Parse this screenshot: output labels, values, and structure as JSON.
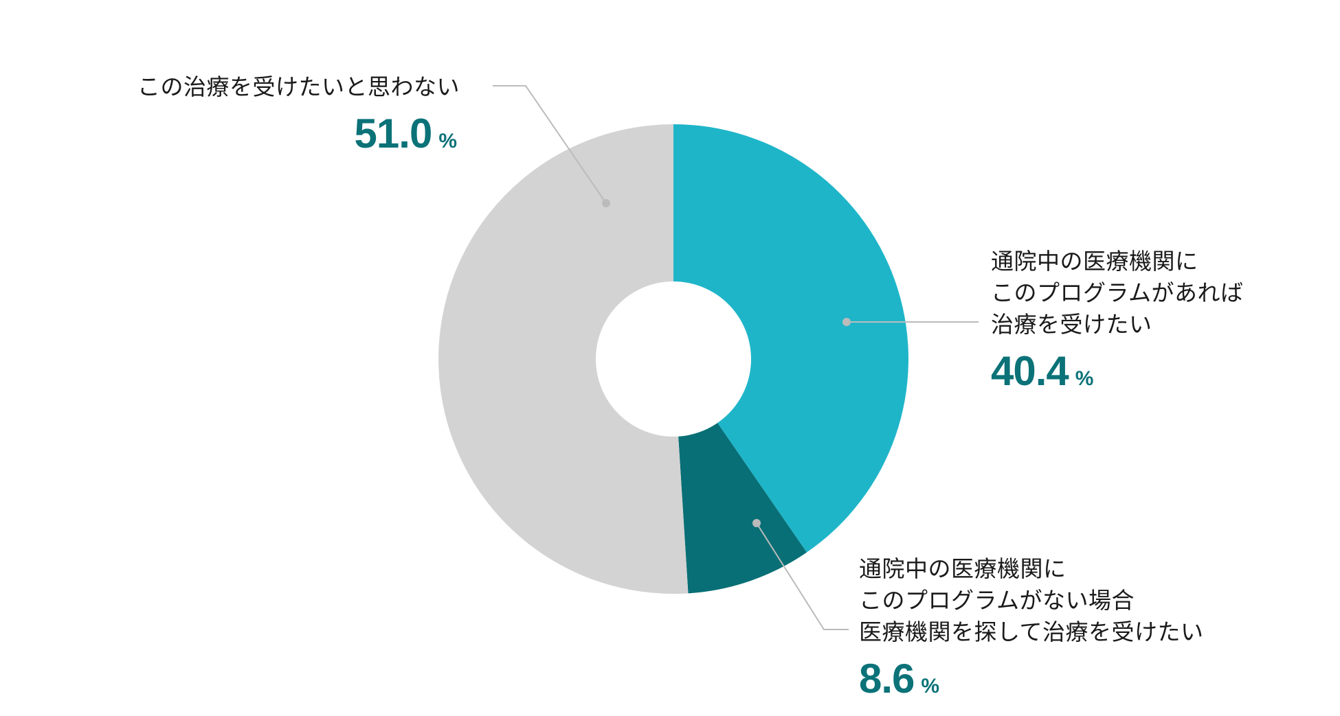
{
  "chart_data": {
    "type": "donut",
    "unit": "%",
    "slices": [
      {
        "label_lines": [
          "通院中の医療機関に",
          "このプログラムがあれば",
          "治療を受けたい"
        ],
        "value": 40.4,
        "value_text": "40.4",
        "color": "#1fb5c9"
      },
      {
        "label_lines": [
          "通院中の医療機関に",
          "このプログラムがない場合",
          "医療機関を探して治療を受けたい"
        ],
        "value": 8.6,
        "value_text": "8.6",
        "color": "#086f76"
      },
      {
        "label_lines": [
          "この治療を受けたいと思わない"
        ],
        "value": 51.0,
        "value_text": "51.0",
        "color": "#d3d3d3"
      }
    ],
    "start_angle": "12 o'clock",
    "direction": "clockwise",
    "value_color": "#0b7278",
    "leader_color": "#bbbbbb"
  }
}
